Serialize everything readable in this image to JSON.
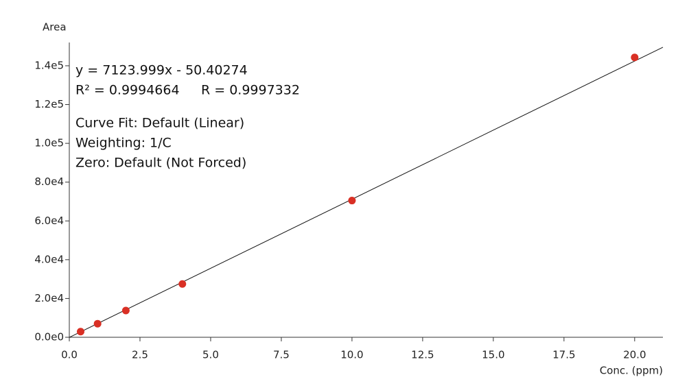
{
  "chart_data": {
    "type": "scatter",
    "x_label": "Conc. (ppm)",
    "y_label": "Area",
    "annotations": [
      "y = 7123.999x - 50.40274",
      "R² = 0.9994664",
      "R = 0.9997332",
      "Curve Fit: Default (Linear)",
      "Weighting: 1/C",
      "Zero: Default (Not Forced)"
    ],
    "x": [
      0.4,
      1.0,
      2.0,
      4.0,
      10.0,
      20.0
    ],
    "values": [
      2900,
      7000,
      13800,
      27500,
      70500,
      144300
    ],
    "color": "#d93025",
    "fit_line": {
      "x": [
        0,
        21.0
      ],
      "values": [
        -50.4,
        149553.6
      ],
      "color": "#111111"
    },
    "xlim": [
      0,
      21.0
    ],
    "ylim": [
      0,
      152000
    ],
    "xticks": [
      {
        "value": 0,
        "label": "0.0"
      },
      2.5,
      {
        "value": 5,
        "label": "5.0"
      },
      7.5,
      {
        "value": 10,
        "label": "10.0"
      },
      12.5,
      {
        "value": 15,
        "label": "15.0"
      },
      17.5,
      {
        "value": 20,
        "label": "20.0"
      }
    ],
    "yticks": [
      {
        "value": 0,
        "label": "0.0e0"
      },
      {
        "value": 20000,
        "label": "2.0e4"
      },
      {
        "value": 40000,
        "label": "4.0e4"
      },
      {
        "value": 60000,
        "label": "6.0e4"
      },
      {
        "value": 80000,
        "label": "8.0e4"
      },
      {
        "value": 100000,
        "label": "1.0e5"
      },
      {
        "value": 120000,
        "label": "1.2e5"
      },
      {
        "value": 140000,
        "label": "1.4e5"
      }
    ],
    "grid": false
  }
}
